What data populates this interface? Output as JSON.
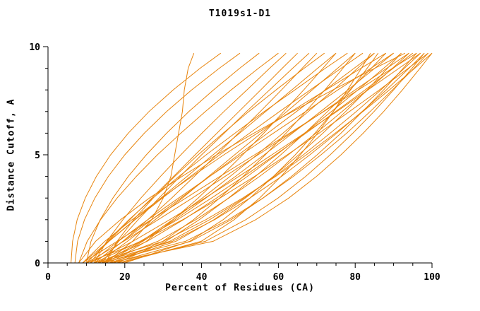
{
  "chart_data": {
    "type": "line",
    "title": "T1019s1-D1",
    "xlabel": "Percent of Residues (CA)",
    "ylabel": "Distance Cutoff, A",
    "xlim": [
      0,
      100
    ],
    "ylim": [
      0,
      10
    ],
    "x_ticks": [
      0,
      20,
      40,
      60,
      80,
      100
    ],
    "y_ticks": [
      0,
      5,
      10
    ],
    "x_minor_step": 5,
    "y_minor_step": 1,
    "grid": "off",
    "legend": "none",
    "line_color": "#e8850e",
    "axis_color": "#000000",
    "y_values": [
      0,
      1,
      2,
      3,
      4,
      5,
      6,
      7,
      8,
      9,
      9.7
    ],
    "series": [
      {
        "x": [
          15,
          22,
          27,
          30,
          32,
          33,
          34,
          35,
          35.5,
          36.5,
          38
        ]
      },
      {
        "x": [
          10,
          11.2,
          13.6,
          16.9,
          20.9,
          25.6,
          30.9,
          36.7,
          43.1,
          49.9,
          55
        ]
      },
      {
        "x": [
          8,
          10.2,
          13.7,
          18,
          23,
          28.5,
          34.6,
          41,
          47.7,
          54.8,
          60
        ]
      },
      {
        "x": [
          12,
          15.3,
          19.5,
          24.2,
          29.3,
          34.6,
          40.1,
          45.8,
          51.8,
          57.7,
          62
        ]
      },
      {
        "x": [
          10,
          15.7,
          21.3,
          27,
          32.7,
          38.3,
          44,
          49.7,
          55.4,
          61,
          65
        ]
      },
      {
        "x": [
          14,
          18.4,
          23.5,
          28.9,
          34.4,
          40,
          45.9,
          51.7,
          57.7,
          63.7,
          68
        ]
      },
      {
        "x": [
          12,
          19.5,
          26,
          32.2,
          38.1,
          43.9,
          49.6,
          55.3,
          60.8,
          66.2,
          70
        ]
      },
      {
        "x": [
          15,
          18,
          22.3,
          27.4,
          33,
          39.1,
          45.6,
          52.3,
          59.4,
          66.7,
          72
        ]
      },
      {
        "x": [
          9,
          15.8,
          22.6,
          29.4,
          36.2,
          43,
          49.9,
          56.7,
          63.5,
          70.2,
          75
        ]
      },
      {
        "x": [
          16,
          25.6,
          32.6,
          39.1,
          45,
          50.7,
          56.2,
          61.4,
          66.6,
          71.6,
          75
        ]
      },
      {
        "x": [
          11,
          15.4,
          21.1,
          27.3,
          34.1,
          41.2,
          48.7,
          56.3,
          64.3,
          72.2,
          78
        ]
      },
      {
        "x": [
          13,
          20.7,
          27.9,
          35,
          41.8,
          48.6,
          55.5,
          62.2,
          68.8,
          75.4,
          80
        ]
      },
      {
        "x": [
          17,
          29.9,
          37.9,
          44.7,
          50.8,
          56.6,
          62,
          67.1,
          72.1,
          76.8,
          80
        ]
      },
      {
        "x": [
          10,
          15.9,
          22.7,
          29.8,
          37.1,
          44.7,
          52.5,
          60.3,
          68.3,
          76.3,
          82
        ]
      },
      {
        "x": [
          14,
          24.3,
          32.5,
          40.2,
          47.4,
          54.4,
          61.2,
          67.8,
          74.4,
          80.6,
          85
        ]
      },
      {
        "x": [
          12,
          19.5,
          27,
          34.6,
          42.1,
          49.6,
          57.2,
          64.7,
          72.2,
          79.7,
          85
        ]
      },
      {
        "x": [
          18,
          30.7,
          39.4,
          47,
          54,
          60.6,
          66.9,
          72.8,
          78.6,
          84.2,
          88
        ]
      },
      {
        "x": [
          9,
          14.8,
          21.9,
          29.5,
          37.5,
          45.8,
          54.5,
          63.3,
          72.4,
          81.5,
          88
        ]
      },
      {
        "x": [
          15,
          24.7,
          33.1,
          41.1,
          48.8,
          56.3,
          63.7,
          71,
          78.1,
          85.1,
          90
        ]
      },
      {
        "x": [
          11,
          18.3,
          26,
          34,
          42.1,
          50.3,
          58.7,
          67.1,
          75.5,
          84.1,
          90
        ]
      },
      {
        "x": [
          13,
          25.8,
          35.3,
          43.9,
          51.9,
          59.5,
          66.8,
          73.8,
          80.7,
          87.4,
          92
        ]
      },
      {
        "x": [
          16,
          33.3,
          43.2,
          51.4,
          58.7,
          65.3,
          71.6,
          77.5,
          83.1,
          88.4,
          92
        ]
      },
      {
        "x": [
          10,
          19.7,
          28.7,
          37.6,
          46.1,
          54.7,
          63.3,
          71.7,
          80,
          88.2,
          94
        ]
      },
      {
        "x": [
          14,
          28.6,
          38.5,
          47.1,
          55.1,
          62.6,
          69.8,
          76.6,
          83.3,
          89.7,
          94
        ]
      },
      {
        "x": [
          12,
          24,
          33.7,
          42.6,
          51,
          59.2,
          67.2,
          74.9,
          82.6,
          89.9,
          95
        ]
      },
      {
        "x": [
          17,
          37.2,
          47.7,
          56,
          63.4,
          70.1,
          76.3,
          81.9,
          87.4,
          92.5,
          96
        ]
      },
      {
        "x": [
          9,
          18,
          26.9,
          35.9,
          44.8,
          53.8,
          62.9,
          71.8,
          80.8,
          89.7,
          96
        ]
      },
      {
        "x": [
          15,
          31.7,
          42.1,
          51.1,
          59,
          66.5,
          73.5,
          80.3,
          86.7,
          92.8,
          97
        ]
      },
      {
        "x": [
          11,
          22.1,
          31.7,
          40.9,
          49.7,
          58.3,
          66.8,
          75.2,
          83.3,
          91.4,
          97
        ]
      },
      {
        "x": [
          13,
          32.4,
          43.4,
          52.6,
          60.8,
          68.2,
          75.2,
          81.8,
          88.1,
          94,
          98
        ]
      },
      {
        "x": [
          18,
          41,
          51.5,
          59.9,
          67.1,
          73.5,
          79.4,
          84.9,
          90,
          94.8,
          98
        ]
      },
      {
        "x": [
          10,
          24.4,
          35.1,
          44.8,
          53.8,
          62.3,
          70.6,
          78.5,
          86.3,
          93.8,
          99
        ]
      },
      {
        "x": [
          14,
          35.8,
          47,
          56,
          63.9,
          71.1,
          77.8,
          83.9,
          89.7,
          95.3,
          99
        ]
      },
      {
        "x": [
          12,
          30,
          41.1,
          50.7,
          59.3,
          67.3,
          74.8,
          82,
          88.9,
          95.5,
          100
        ]
      },
      {
        "x": [
          16,
          43,
          54.1,
          62.7,
          69.9,
          76.3,
          82.1,
          87.4,
          92.3,
          96.9,
          100
        ]
      },
      {
        "x": [
          7,
          7.7,
          9.5,
          12.2,
          15.7,
          20,
          25.1,
          30.9,
          37.4,
          44.6,
          50
        ]
      },
      {
        "x": [
          6,
          6.4,
          7.6,
          9.7,
          12.6,
          16.3,
          20.9,
          26.3,
          32.6,
          39.6,
          45
        ]
      },
      {
        "x": [
          20,
          36.9,
          45.6,
          52.6,
          58.7,
          64.4,
          69.5,
          74.3,
          78.8,
          83.1,
          86
        ]
      },
      {
        "x": [
          8,
          12.4,
          18.9,
          26.4,
          34.9,
          43.9,
          53.6,
          63.7,
          74.2,
          85.1,
          93
        ]
      },
      {
        "x": [
          19,
          39.9,
          48.5,
          55.1,
          60.7,
          65.7,
          70.2,
          74.3,
          78,
          81.6,
          84
        ]
      }
    ]
  }
}
